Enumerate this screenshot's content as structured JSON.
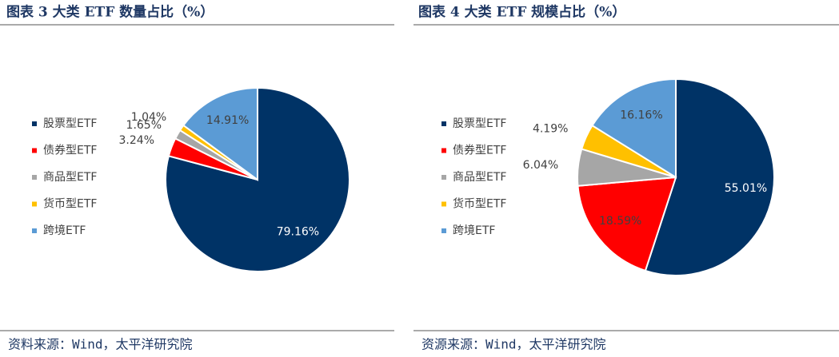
{
  "chart_data": [
    {
      "type": "pie",
      "title": "图表 3 大类 ETF 数量占比（%）",
      "source": "资料来源：Wind，太平洋研究院",
      "categories": [
        "股票型ETF",
        "债券型ETF",
        "商品型ETF",
        "货币型ETF",
        "跨境ETF"
      ],
      "values": [
        79.16,
        3.24,
        1.65,
        1.04,
        14.91
      ],
      "value_labels": [
        "79.16%",
        "3.24%",
        "1.65%",
        "1.04%",
        "14.91%"
      ],
      "colors": [
        "#003366",
        "#ff0000",
        "#a6a6a6",
        "#ffc000",
        "#5b9bd5"
      ]
    },
    {
      "type": "pie",
      "title": "图表 4 大类 ETF 规模占比（%）",
      "source": "资源来源：Wind，太平洋研究院",
      "categories": [
        "股票型ETF",
        "债券型ETF",
        "商品型ETF",
        "货币型ETF",
        "跨境ETF"
      ],
      "values": [
        55.01,
        18.59,
        6.04,
        4.19,
        16.16
      ],
      "value_labels": [
        "55.01%",
        "18.59%",
        "6.04%",
        "4.19%",
        "16.16%"
      ],
      "colors": [
        "#003366",
        "#ff0000",
        "#a6a6a6",
        "#ffc000",
        "#5b9bd5"
      ]
    }
  ]
}
